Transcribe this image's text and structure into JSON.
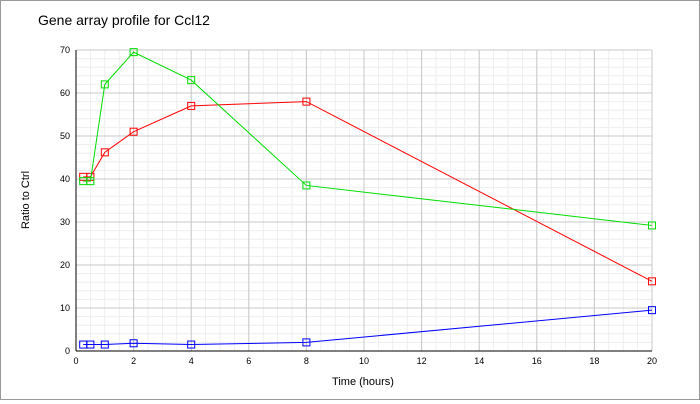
{
  "chart_data": {
    "type": "line",
    "title": "Gene array profile for Ccl12",
    "xlabel": "Time (hours)",
    "ylabel": "Ratio to Ctrl",
    "xlim": [
      0,
      20
    ],
    "ylim": [
      0,
      70
    ],
    "xticks": [
      0,
      2,
      4,
      6,
      8,
      10,
      12,
      14,
      16,
      18,
      20
    ],
    "yticks": [
      0,
      10,
      20,
      30,
      40,
      50,
      60,
      70
    ],
    "grid": true,
    "x": [
      0.25,
      0.5,
      1,
      2,
      4,
      8,
      20
    ],
    "series": [
      {
        "name": "red",
        "color": "#ff0000",
        "values": [
          40.5,
          40.5,
          46.2,
          51,
          57,
          58,
          16.2
        ]
      },
      {
        "name": "green",
        "color": "#00dd00",
        "values": [
          39.5,
          39.5,
          62,
          69.5,
          63,
          38.5,
          29.2
        ]
      },
      {
        "name": "blue",
        "color": "#0000ff",
        "values": [
          1.5,
          1.5,
          1.5,
          1.8,
          1.5,
          2,
          9.5
        ]
      }
    ]
  }
}
